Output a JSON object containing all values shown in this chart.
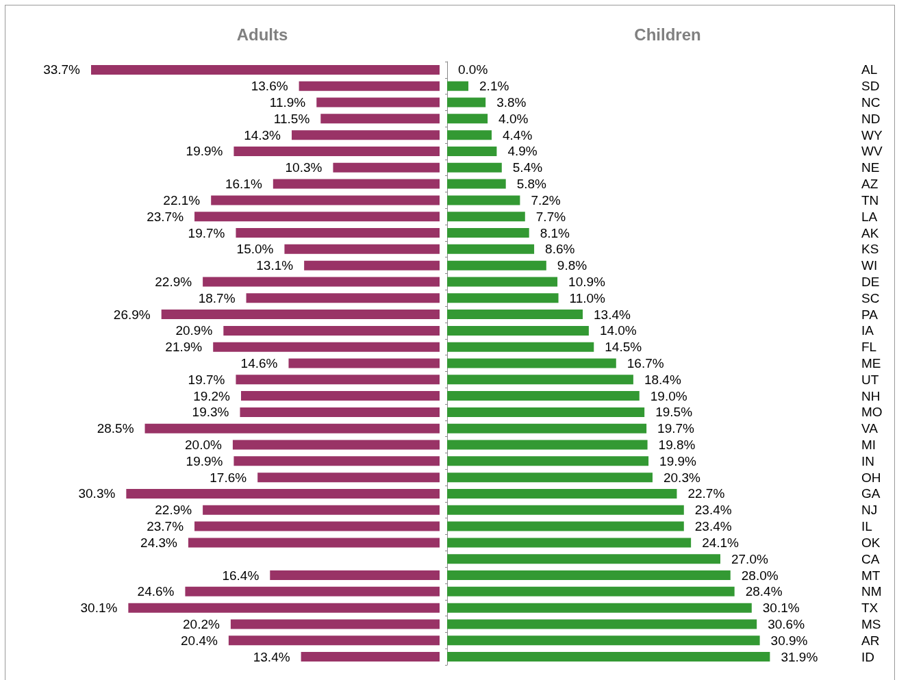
{
  "chart_data": [
    {
      "type": "bar",
      "orientation": "horizontal",
      "title": "Adults",
      "color": "#993366",
      "categories": [
        "AL",
        "SD",
        "NC",
        "ND",
        "WY",
        "WV",
        "NE",
        "AZ",
        "TN",
        "LA",
        "AK",
        "KS",
        "WI",
        "DE",
        "SC",
        "PA",
        "IA",
        "FL",
        "ME",
        "UT",
        "NH",
        "MO",
        "VA",
        "MI",
        "IN",
        "OH",
        "GA",
        "NJ",
        "IL",
        "OK",
        "CA",
        "MT",
        "NM",
        "TX",
        "MS",
        "AR",
        "ID"
      ],
      "values": [
        33.7,
        13.6,
        11.9,
        11.5,
        14.3,
        19.9,
        10.3,
        16.1,
        22.1,
        23.7,
        19.7,
        15.0,
        13.1,
        22.9,
        18.7,
        26.9,
        20.9,
        21.9,
        14.6,
        19.7,
        19.2,
        19.3,
        28.5,
        20.0,
        19.9,
        17.6,
        30.3,
        22.9,
        23.7,
        24.3,
        null,
        16.4,
        24.6,
        30.1,
        20.2,
        20.4,
        13.4
      ],
      "value_labels": [
        "33.7%",
        "13.6%",
        "11.9%",
        "11.5%",
        "14.3%",
        "19.9%",
        "10.3%",
        "16.1%",
        "22.1%",
        "23.7%",
        "19.7%",
        "15.0%",
        "13.1%",
        "22.9%",
        "18.7%",
        "26.9%",
        "20.9%",
        "21.9%",
        "14.6%",
        "19.7%",
        "19.2%",
        "19.3%",
        "28.5%",
        "20.0%",
        "19.9%",
        "17.6%",
        "30.3%",
        "22.9%",
        "23.7%",
        "24.3%",
        null,
        "16.4%",
        "24.6%",
        "30.1%",
        "20.2%",
        "20.4%",
        "13.4%"
      ]
    },
    {
      "type": "bar",
      "orientation": "horizontal",
      "title": "Children",
      "color": "#339933",
      "categories": [
        null,
        null,
        null,
        null,
        null,
        null,
        null,
        null,
        null,
        null,
        null,
        null,
        null,
        null,
        null,
        null,
        null,
        null,
        null,
        null,
        null,
        null,
        null,
        null,
        null,
        null,
        null,
        null,
        null,
        null,
        null,
        null,
        null,
        null,
        null,
        null,
        null
      ],
      "values": [
        0.0,
        2.1,
        3.8,
        4.0,
        4.4,
        4.9,
        5.4,
        5.8,
        7.2,
        7.7,
        8.1,
        8.6,
        9.8,
        10.9,
        11.0,
        13.4,
        14.0,
        14.5,
        16.7,
        18.4,
        19.0,
        19.5,
        19.7,
        19.8,
        19.9,
        20.3,
        22.7,
        23.4,
        23.4,
        24.1,
        27.0,
        28.0,
        28.4,
        30.1,
        30.6,
        30.9,
        31.9
      ],
      "value_labels": [
        "0.0%",
        "2.1%",
        "3.8%",
        "4.0%",
        "4.4%",
        "4.9%",
        "5.4%",
        "5.8%",
        "7.2%",
        "7.7%",
        "8.1%",
        "8.6%",
        "9.8%",
        "10.9%",
        "11.0%",
        "13.4%",
        "14.0%",
        "14.5%",
        "16.7%",
        "18.4%",
        "19.0%",
        "19.5%",
        "19.7%",
        "19.8%",
        "19.9%",
        "20.3%",
        "22.7%",
        "23.4%",
        "23.4%",
        "24.1%",
        "27.0%",
        "28.0%",
        "28.4%",
        "30.1%",
        "30.6%",
        "30.9%",
        "31.9%"
      ]
    }
  ]
}
